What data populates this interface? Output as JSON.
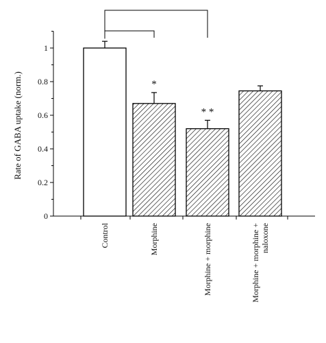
{
  "chart_data": {
    "type": "bar",
    "title": "",
    "xlabel": "",
    "ylabel": "Rate of GABA uptake (norm.)",
    "ylim": [
      0,
      1.1
    ],
    "yticks": [
      0,
      0.2,
      0.4,
      0.6,
      0.8,
      1
    ],
    "ytick_labels": [
      "0",
      "0.2",
      "0.4",
      "0.6",
      "0.8",
      "1"
    ],
    "categories": [
      "Control",
      "Morphine",
      "Morphine + morphine",
      "Morphine + morphine + naloxone"
    ],
    "category_lines": [
      [
        "Control"
      ],
      [
        "Morphine"
      ],
      [
        "Morphine + morphine"
      ],
      [
        "Morphine + morphine +",
        "naloxone"
      ]
    ],
    "values": [
      1.0,
      0.67,
      0.52,
      0.745
    ],
    "errors": [
      0.04,
      0.065,
      0.05,
      0.03
    ],
    "fills": [
      "none",
      "hatch",
      "hatch",
      "hatch"
    ],
    "significance": [
      "",
      "*",
      "**",
      ""
    ],
    "brackets": [
      {
        "from": 0,
        "to": 1,
        "level": 1.1
      },
      {
        "from": 0,
        "to": 2,
        "level": 1.2
      }
    ],
    "grid": false,
    "legend": "none",
    "colors": {
      "bar_edge": "#000000",
      "hatch": "#000000",
      "background": "#ffffff"
    }
  }
}
